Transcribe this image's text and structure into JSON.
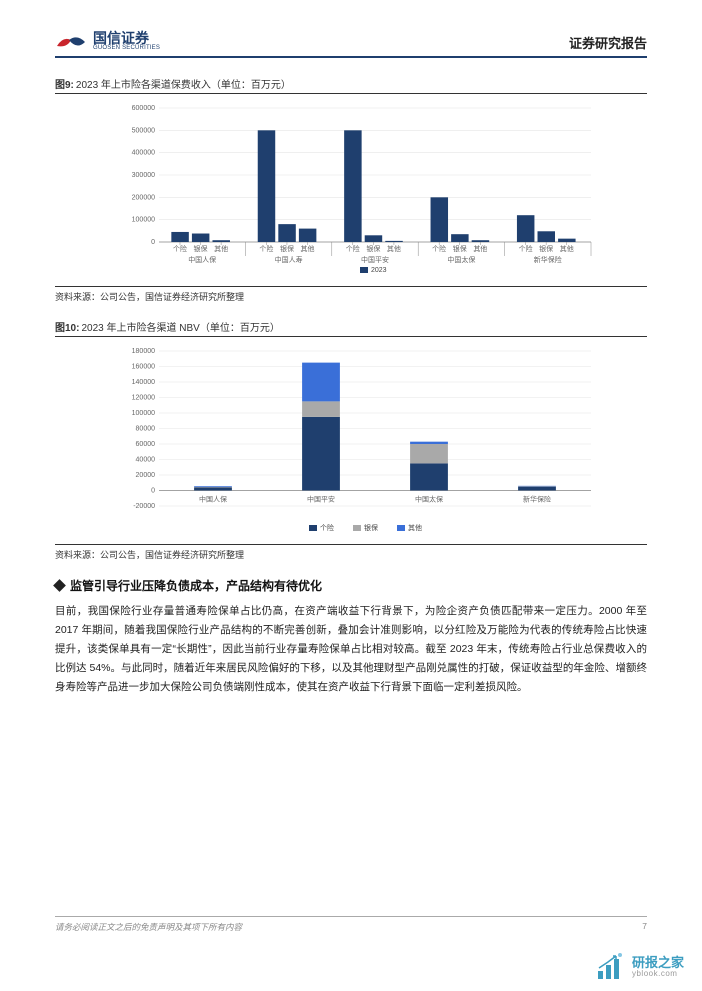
{
  "header": {
    "brand_cn": "国信证券",
    "brand_en": "GUOSEN SECURITIES",
    "report_type": "证券研究报告",
    "logo_colors": {
      "red": "#c9252c",
      "blue": "#1f3f6e"
    }
  },
  "figure9": {
    "prefix": "图9:",
    "title": "2023 年上市险各渠道保费收入（单位：百万元）",
    "type": "bar",
    "groups": [
      "中国人保",
      "中国人寿",
      "中国平安",
      "中国太保",
      "新华保险"
    ],
    "subcats": [
      "个险",
      "银保",
      "其他"
    ],
    "values": [
      [
        45000,
        38000,
        8000
      ],
      [
        500000,
        80000,
        60000
      ],
      [
        500000,
        30000,
        5000
      ],
      [
        200000,
        35000,
        8000
      ],
      [
        120000,
        48000,
        15000
      ]
    ],
    "ylim": [
      0,
      600000
    ],
    "ytick_step": 100000,
    "bar_color": "#1f3f6e",
    "grid_color": "#e5e5e5",
    "axis_color": "#888888",
    "legend_items": [
      "2023"
    ],
    "legend_color": "#1f3f6e",
    "font_size": 7,
    "source": "资料来源：公司公告，国信证券经济研究所整理"
  },
  "figure10": {
    "prefix": "图10:",
    "title": "2023 年上市险各渠道 NBV（单位：百万元）",
    "type": "stacked-bar",
    "categories": [
      "中国人保",
      "中国平安",
      "中国太保",
      "新华保险"
    ],
    "series": [
      {
        "name": "个险",
        "color": "#1f3f6e",
        "values": [
          4000,
          95000,
          35000,
          5000
        ]
      },
      {
        "name": "银保",
        "color": "#a9a9a9",
        "values": [
          500,
          20000,
          25000,
          500
        ]
      },
      {
        "name": "其他",
        "color": "#3a6fd8",
        "values": [
          1000,
          50000,
          3000,
          500
        ]
      }
    ],
    "ylim": [
      -20000,
      180000
    ],
    "ytick_step": 20000,
    "grid_color": "#e5e5e5",
    "axis_color": "#888888",
    "font_size": 7,
    "source": "资料来源：公司公告，国信证券经济研究所整理"
  },
  "section": {
    "heading": "监管引导行业压降负债成本，产品结构有待优化",
    "body": "目前，我国保险行业存量普通寿险保单占比仍高，在资产端收益下行背景下，为险企资产负债匹配带来一定压力。2000 年至 2017 年期间，随着我国保险行业产品结构的不断完善创新，叠加会计准则影响，以分红险及万能险为代表的传统寿险占比快速提升，该类保单具有一定“长期性”，因此当前行业存量寿险保单占比相对较高。截至 2023 年末，传统寿险占行业总保费收入的比例达 54%。与此同时，随着近年来居民风险偏好的下移，以及其他理财型产品刚兑属性的打破，保证收益型的年金险、增额终身寿险等产品进一步加大保险公司负债端刚性成本，使其在资产收益下行背景下面临一定利差损风险。"
  },
  "footer": {
    "disclaimer": "请务必阅读正文之后的免责声明及其项下所有内容",
    "page_number": "7"
  },
  "watermark": {
    "name_cn": "研报之家",
    "url": "yblook.com",
    "icon_color": "#1b8db6"
  }
}
